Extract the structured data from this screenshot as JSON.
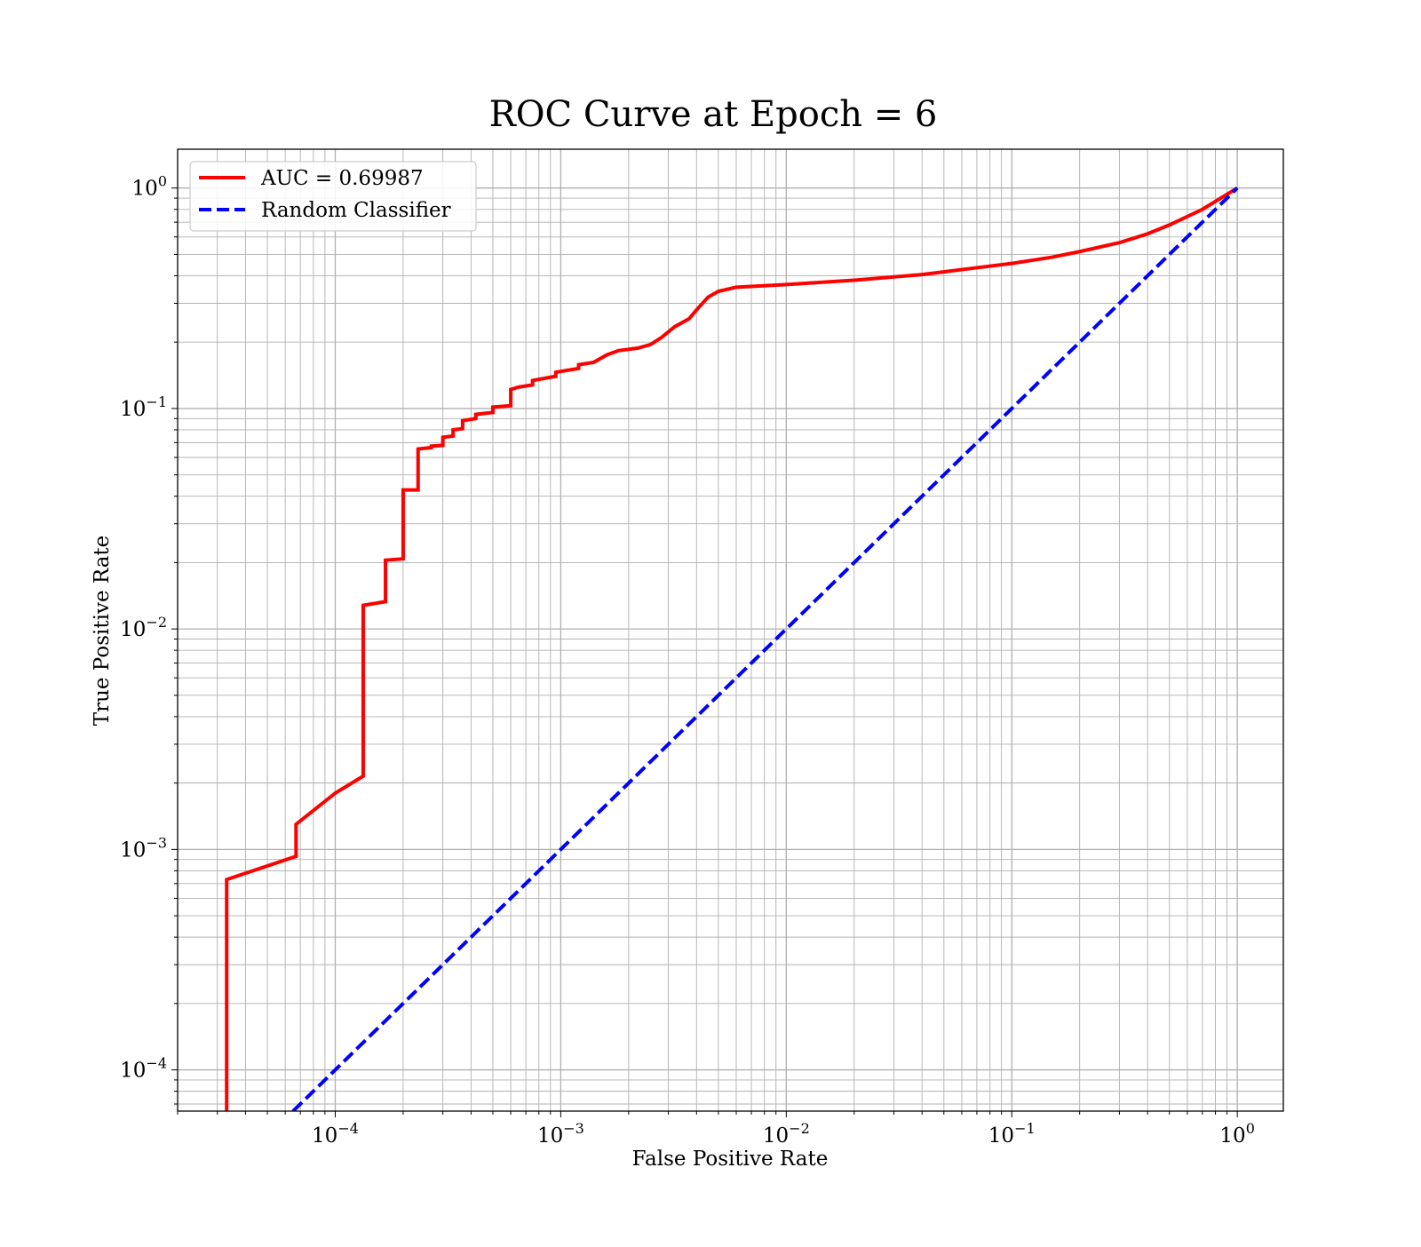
{
  "chart_data": {
    "type": "line",
    "title": "ROC Curve at Epoch = 6",
    "xlabel": "False Positive Rate",
    "ylabel": "True Positive Rate",
    "xscale": "log",
    "yscale": "log",
    "xlim": [
      2e-05,
      1.6
    ],
    "ylim": [
      6.5e-05,
      1.5
    ],
    "grid": true,
    "legend_position": "top-left",
    "x_ticks": [
      {
        "base": "10",
        "exp": "−4",
        "value": 0.0001
      },
      {
        "base": "10",
        "exp": "−3",
        "value": 0.001
      },
      {
        "base": "10",
        "exp": "−2",
        "value": 0.01
      },
      {
        "base": "10",
        "exp": "−1",
        "value": 0.1
      },
      {
        "base": "10",
        "exp": "0",
        "value": 1
      }
    ],
    "y_ticks": [
      {
        "base": "10",
        "exp": "−4",
        "value": 0.0001
      },
      {
        "base": "10",
        "exp": "−3",
        "value": 0.001
      },
      {
        "base": "10",
        "exp": "−2",
        "value": 0.01
      },
      {
        "base": "10",
        "exp": "−1",
        "value": 0.1
      },
      {
        "base": "10",
        "exp": "0",
        "value": 1
      }
    ],
    "series": [
      {
        "name": "AUC = 0.69987",
        "color": "#ff0000",
        "style": "solid",
        "points": [
          [
            3.3e-05,
            6.5e-05
          ],
          [
            3.3e-05,
            0.00073
          ],
          [
            6.7e-05,
            0.00093
          ],
          [
            6.7e-05,
            0.0013
          ],
          [
            0.0001,
            0.0018
          ],
          [
            0.000133,
            0.00215
          ],
          [
            0.000133,
            0.0128
          ],
          [
            0.000167,
            0.0133
          ],
          [
            0.000167,
            0.0205
          ],
          [
            0.0002,
            0.0208
          ],
          [
            0.0002,
            0.0427
          ],
          [
            0.000233,
            0.0427
          ],
          [
            0.000233,
            0.0655
          ],
          [
            0.000267,
            0.0665
          ],
          [
            0.000267,
            0.0675
          ],
          [
            0.0003,
            0.068
          ],
          [
            0.0003,
            0.074
          ],
          [
            0.000333,
            0.075
          ],
          [
            0.000333,
            0.08
          ],
          [
            0.000367,
            0.081
          ],
          [
            0.000367,
            0.088
          ],
          [
            0.00042,
            0.09
          ],
          [
            0.00042,
            0.094
          ],
          [
            0.0005,
            0.096
          ],
          [
            0.0005,
            0.1015
          ],
          [
            0.0006,
            0.103
          ],
          [
            0.0006,
            0.122
          ],
          [
            0.00065,
            0.125
          ],
          [
            0.00075,
            0.128
          ],
          [
            0.00075,
            0.134
          ],
          [
            0.00095,
            0.14
          ],
          [
            0.00095,
            0.146
          ],
          [
            0.0012,
            0.152
          ],
          [
            0.0012,
            0.158
          ],
          [
            0.0014,
            0.162
          ],
          [
            0.0016,
            0.175
          ],
          [
            0.0018,
            0.183
          ],
          [
            0.0022,
            0.188
          ],
          [
            0.0025,
            0.195
          ],
          [
            0.0028,
            0.21
          ],
          [
            0.0032,
            0.235
          ],
          [
            0.0037,
            0.255
          ],
          [
            0.004,
            0.28
          ],
          [
            0.0045,
            0.32
          ],
          [
            0.005,
            0.34
          ],
          [
            0.006,
            0.355
          ],
          [
            0.01,
            0.365
          ],
          [
            0.02,
            0.382
          ],
          [
            0.04,
            0.405
          ],
          [
            0.07,
            0.435
          ],
          [
            0.1,
            0.455
          ],
          [
            0.15,
            0.485
          ],
          [
            0.2,
            0.515
          ],
          [
            0.3,
            0.565
          ],
          [
            0.4,
            0.62
          ],
          [
            0.5,
            0.68
          ],
          [
            0.7,
            0.8
          ],
          [
            1.0,
            1.0
          ]
        ]
      },
      {
        "name": "Random Classifier",
        "color": "#0000ff",
        "style": "dashed",
        "points": [
          [
            6.5e-05,
            6.5e-05
          ],
          [
            1.0,
            1.0
          ]
        ]
      }
    ]
  }
}
